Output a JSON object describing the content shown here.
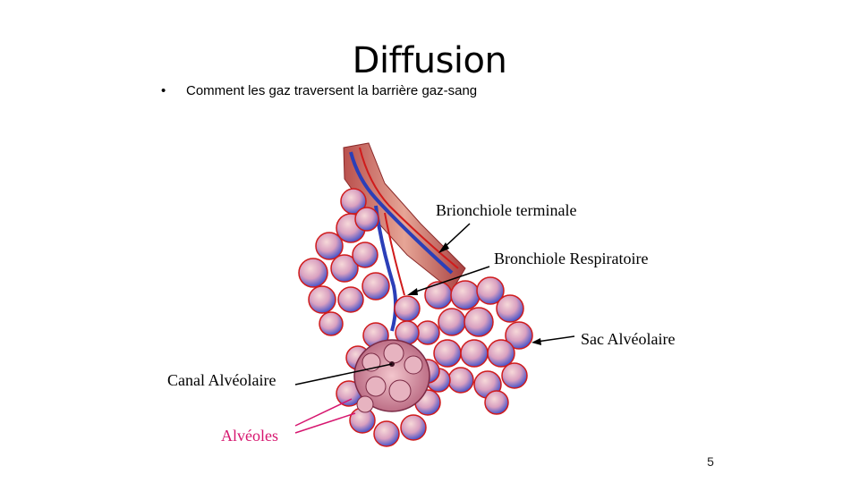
{
  "slide": {
    "title": "Diffusion",
    "bullet": "Comment les gaz traversent la barrière gaz-sang",
    "page_number": "5"
  },
  "labels": {
    "terminal": "Brionchiole terminale",
    "respiratory": "Bronchiole Respiratoire",
    "sac": "Sac Alvéolaire",
    "canal": "Canal Alvéolaire",
    "alveoles": "Alvéoles"
  },
  "colors": {
    "alveoles_label": "#d6166f",
    "tissue_red": "#d01b1b",
    "vein_blue": "#2b3fb8"
  }
}
